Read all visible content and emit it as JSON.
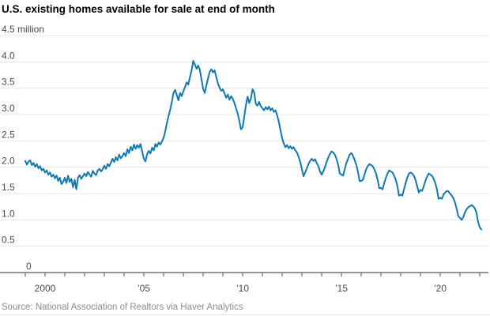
{
  "title": "U.S. existing homes available for sale at end of month",
  "source": "Source: National Association of Realtors via Haver Analytics",
  "chart_data": {
    "type": "line",
    "title": "U.S. existing homes available for sale at end of month",
    "unit": "million",
    "ylim": [
      0,
      4.5
    ],
    "grid": "horizontal",
    "legend": "none",
    "line_color": "#0e79b2",
    "grid_color": "#e6e6e6",
    "axis_color": "#555555",
    "label_color": "#4a4a4a",
    "y_ticks": [
      {
        "value": 4.5,
        "label": "4.5 million"
      },
      {
        "value": 4.0,
        "label": "4.0"
      },
      {
        "value": 3.5,
        "label": "3.5"
      },
      {
        "value": 3.0,
        "label": "3.0"
      },
      {
        "value": 2.5,
        "label": "2.5"
      },
      {
        "value": 2.0,
        "label": "2.0"
      },
      {
        "value": 1.5,
        "label": "1.5"
      },
      {
        "value": 1.0,
        "label": "1.0"
      },
      {
        "value": 0.5,
        "label": "0.5"
      },
      {
        "value": 0,
        "label": "0"
      }
    ],
    "x_tick_year_start": 1999,
    "x_tick_year_end": 2022,
    "x_labels": [
      {
        "year": 2000,
        "label": "2000"
      },
      {
        "year": 2005,
        "label": "’05"
      },
      {
        "year": 2010,
        "label": "’10"
      },
      {
        "year": 2015,
        "label": "’15"
      },
      {
        "year": 2020,
        "label": "’20"
      }
    ],
    "series": [
      {
        "name": "Existing homes available for sale, end of month (millions)",
        "start_year": 1999,
        "start_month": 1,
        "frequency": "monthly",
        "values": [
          2.12,
          2.05,
          2.11,
          2.13,
          2.04,
          2.08,
          2.01,
          2.06,
          1.98,
          2.02,
          1.94,
          1.97,
          1.9,
          1.94,
          1.86,
          1.9,
          1.82,
          1.86,
          1.79,
          1.84,
          1.74,
          1.8,
          1.68,
          1.72,
          1.8,
          1.7,
          1.84,
          1.72,
          1.78,
          1.62,
          1.76,
          1.58,
          1.8,
          1.85,
          1.78,
          1.83,
          1.88,
          1.83,
          1.91,
          1.86,
          1.82,
          1.93,
          1.88,
          1.85,
          1.94,
          1.97,
          1.92,
          1.96,
          2.03,
          1.97,
          2.06,
          2.02,
          2.09,
          2.16,
          2.1,
          2.19,
          2.13,
          2.24,
          2.17,
          2.21,
          2.27,
          2.21,
          2.34,
          2.27,
          2.39,
          2.32,
          2.43,
          2.35,
          2.42,
          2.37,
          2.44,
          2.3,
          2.16,
          2.11,
          2.25,
          2.31,
          2.26,
          2.37,
          2.32,
          2.44,
          2.39,
          2.47,
          2.43,
          2.49,
          2.56,
          2.68,
          2.84,
          2.97,
          3.09,
          3.24,
          3.41,
          3.47,
          3.37,
          3.27,
          3.41,
          3.35,
          3.44,
          3.52,
          3.61,
          3.57,
          3.71,
          3.84,
          4.02,
          3.95,
          3.87,
          3.93,
          3.85,
          3.67,
          3.49,
          3.41,
          3.55,
          3.69,
          3.81,
          3.86,
          3.8,
          3.84,
          3.71,
          3.59,
          3.51,
          3.45,
          3.48,
          3.4,
          3.32,
          3.38,
          3.28,
          3.35,
          3.3,
          3.22,
          3.12,
          3.02,
          2.88,
          2.72,
          2.76,
          2.96,
          3.18,
          3.34,
          3.22,
          3.3,
          3.48,
          3.42,
          3.2,
          3.17,
          3.24,
          3.16,
          3.12,
          3.08,
          3.14,
          3.1,
          3.15,
          3.08,
          3.12,
          3.05,
          3.08,
          2.98,
          2.86,
          2.7,
          2.55,
          2.45,
          2.38,
          2.42,
          2.36,
          2.4,
          2.35,
          2.38,
          2.32,
          2.28,
          2.2,
          2.1,
          1.96,
          1.83,
          1.9,
          1.98,
          2.06,
          2.12,
          2.16,
          2.12,
          2.15,
          2.08,
          2.02,
          1.92,
          1.86,
          1.92,
          2.0,
          2.1,
          2.18,
          2.25,
          2.3,
          2.28,
          2.24,
          2.16,
          2.05,
          1.88,
          1.86,
          1.84,
          1.96,
          2.08,
          2.16,
          2.24,
          2.27,
          2.22,
          2.14,
          2.05,
          1.92,
          1.74,
          1.74,
          1.76,
          1.86,
          1.96,
          2.02,
          2.06,
          2.04,
          2.02,
          1.96,
          1.88,
          1.76,
          1.6,
          1.61,
          1.58,
          1.7,
          1.8,
          1.88,
          1.94,
          1.92,
          1.9,
          1.84,
          1.76,
          1.64,
          1.46,
          1.48,
          1.46,
          1.58,
          1.7,
          1.8,
          1.88,
          1.9,
          1.88,
          1.84,
          1.76,
          1.64,
          1.52,
          1.57,
          1.55,
          1.64,
          1.74,
          1.82,
          1.88,
          1.86,
          1.84,
          1.78,
          1.7,
          1.58,
          1.4,
          1.42,
          1.4,
          1.48,
          1.52,
          1.55,
          1.54,
          1.5,
          1.46,
          1.41,
          1.33,
          1.21,
          1.07,
          1.04,
          1.0,
          1.05,
          1.14,
          1.2,
          1.24,
          1.26,
          1.28,
          1.26,
          1.22,
          1.14,
          0.96,
          0.86,
          0.82
        ]
      }
    ]
  }
}
